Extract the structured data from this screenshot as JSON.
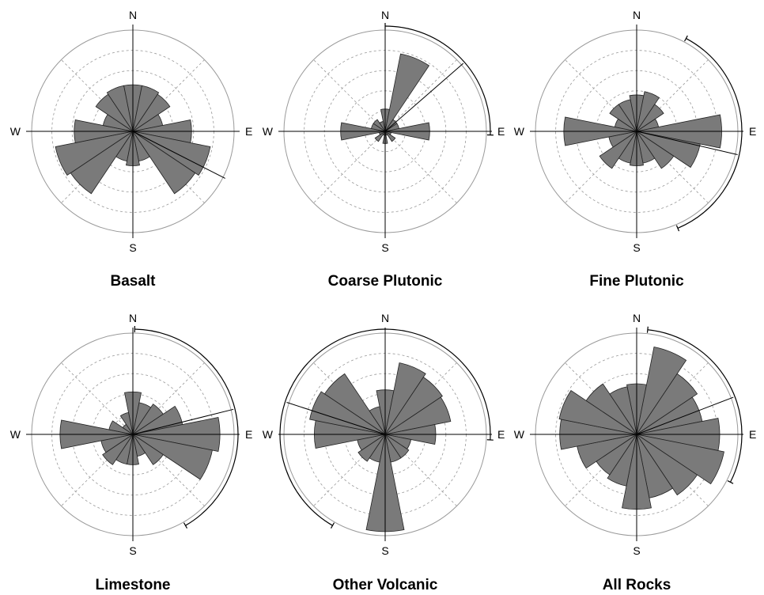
{
  "chart_data": [
    {
      "type": "rose",
      "title": "Basalt",
      "compass": [
        "N",
        "E",
        "S",
        "W"
      ],
      "radial_max": 5,
      "grid": "dashed circles and diagonals",
      "bin_width_deg": 22.5,
      "petals": [
        2.3,
        2.3,
        2.2,
        1.5,
        2.9,
        3.9,
        3.7,
        1.5,
        1.7,
        1.5,
        3.7,
        3.9,
        2.9,
        1.5,
        2.2,
        2.3
      ],
      "mean_direction_deg": 117
    },
    {
      "type": "rose",
      "title": "Coarse Plutonic",
      "compass": [
        "N",
        "E",
        "S",
        "W"
      ],
      "radial_max": 5,
      "grid": "dashed circles and diagonals",
      "bin_width_deg": 22.5,
      "petals": [
        1.1,
        3.9,
        0.7,
        0.7,
        2.2,
        0.3,
        0.6,
        0.2,
        0.6,
        0.2,
        0.6,
        0.3,
        2.2,
        0.7,
        0.7,
        0.5
      ],
      "mean_direction_deg": 49,
      "confidence_arc_deg": [
        0,
        92
      ]
    },
    {
      "type": "rose",
      "title": "Fine Plutonic",
      "compass": [
        "N",
        "E",
        "S",
        "W"
      ],
      "radial_max": 5,
      "grid": "dashed circles and diagonals",
      "bin_width_deg": 22.5,
      "petals": [
        1.8,
        2.0,
        1.6,
        1.1,
        4.2,
        3.2,
        2.2,
        1.6,
        1.7,
        1.6,
        2.2,
        1.4,
        3.6,
        1.1,
        1.6,
        1.6
      ],
      "mean_direction_deg": 103,
      "confidence_arc_deg": [
        28,
        157
      ]
    },
    {
      "type": "rose",
      "title": "Limestone",
      "compass": [
        "N",
        "E",
        "S",
        "W"
      ],
      "radial_max": 5,
      "grid": "dashed circles and diagonals",
      "bin_width_deg": 22.5,
      "petals": [
        2.1,
        1.6,
        1.8,
        2.5,
        4.3,
        4.0,
        1.8,
        1.1,
        1.5,
        1.5,
        1.8,
        1.6,
        3.6,
        1.2,
        0.6,
        1.1
      ],
      "mean_direction_deg": 76,
      "confidence_arc_deg": [
        1,
        150
      ]
    },
    {
      "type": "rose",
      "title": "Other Volcanic",
      "compass": [
        "N",
        "E",
        "S",
        "W"
      ],
      "radial_max": 5,
      "grid": "dashed circles and diagonals",
      "bin_width_deg": 22.5,
      "petals": [
        2.2,
        3.6,
        3.4,
        3.3,
        2.5,
        1.3,
        1.4,
        1.4,
        4.8,
        1.4,
        1.6,
        1.4,
        3.5,
        3.8,
        3.6,
        1.4
      ],
      "mean_direction_deg": 288,
      "confidence_arc_deg": [
        -150,
        93
      ]
    },
    {
      "type": "rose",
      "title": "All Rocks",
      "compass": [
        "N",
        "E",
        "S",
        "W"
      ],
      "radial_max": 5,
      "grid": "dashed circles and diagonals",
      "bin_width_deg": 22.5,
      "petals": [
        2.5,
        4.4,
        3.6,
        3.3,
        4.1,
        4.4,
        3.6,
        3.2,
        3.7,
        2.6,
        2.4,
        3.0,
        3.8,
        3.9,
        3.0,
        2.4
      ],
      "mean_direction_deg": 69,
      "confidence_arc_deg": [
        6,
        117
      ]
    }
  ]
}
